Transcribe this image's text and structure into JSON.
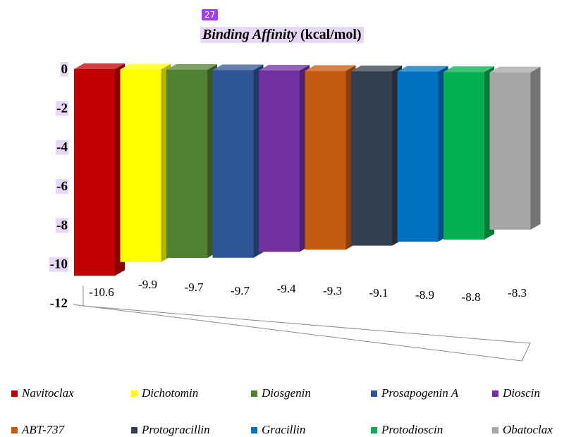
{
  "badge": "27",
  "chart_data": {
    "type": "bar",
    "title": "Binding Affinity (kcal/mol)",
    "title_italic_part": "Binding Affinity",
    "title_normal_part": "(kcal/mol)",
    "categories": [
      "Navitoclax",
      "Dichotomin",
      "Diosgenin",
      "Prosapogenin A",
      "Dioscin",
      "ABT-737",
      "Protogracillin",
      "Gracillin",
      "Protodioscin",
      "Obatoclax"
    ],
    "values": [
      -10.6,
      -9.9,
      -9.7,
      -9.7,
      -9.4,
      -9.3,
      -9.1,
      -8.9,
      -8.8,
      -8.3
    ],
    "data_labels": [
      "-10.6",
      "-9.9",
      "-9.7",
      "-9.7",
      "-9.4",
      "-9.3",
      "-9.1",
      "-8.9",
      "-8.8",
      "-8.3"
    ],
    "colors": [
      "#c00000",
      "#ffff00",
      "#4f8130",
      "#2e5596",
      "#7030a0",
      "#c55a11",
      "#333f50",
      "#0070c0",
      "#00b050",
      "#a6a6a6"
    ],
    "ylim": [
      -12,
      0
    ],
    "yticks": [
      "0",
      "-2",
      "-4",
      "-6",
      "-8",
      "-10",
      "-12"
    ],
    "grid": false,
    "legend_position": "bottom"
  }
}
